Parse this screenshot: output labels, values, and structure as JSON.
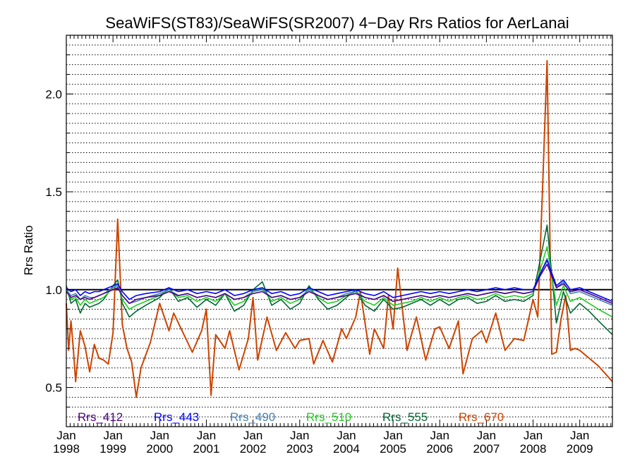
{
  "chart_data": {
    "type": "line",
    "title": "SeaWiFS(ST83)/SeaWiFS(SR2007) 4−Day Rrs Ratios for AerLanai",
    "xlabel": "",
    "ylabel": "Rrs Ratio",
    "xlim": [
      1998.0,
      2009.7
    ],
    "ylim": [
      0.3,
      2.3
    ],
    "y_ticks": [
      "0.5",
      "1.0",
      "1.5",
      "2.0"
    ],
    "x_ticks": [
      {
        "month": "Jan",
        "year": "1998",
        "x": 1998.0
      },
      {
        "month": "Jan",
        "year": "1999",
        "x": 1999.0
      },
      {
        "month": "Jan",
        "year": "2000",
        "x": 2000.0
      },
      {
        "month": "Jan",
        "year": "2001",
        "x": 2001.0
      },
      {
        "month": "Jan",
        "year": "2002",
        "x": 2002.0
      },
      {
        "month": "Jan",
        "year": "2003",
        "x": 2003.0
      },
      {
        "month": "Jan",
        "year": "2004",
        "x": 2004.0
      },
      {
        "month": "Jan",
        "year": "2005",
        "x": 2005.0
      },
      {
        "month": "Jan",
        "year": "2006",
        "x": 2006.0
      },
      {
        "month": "Jan",
        "year": "2007",
        "x": 2007.0
      },
      {
        "month": "Jan",
        "year": "2008",
        "x": 2008.0
      },
      {
        "month": "Jan",
        "year": "2009",
        "x": 2009.0
      }
    ],
    "reference_line": 1.0,
    "grid": "horizontal dotted",
    "legend_position": "bottom",
    "series": [
      {
        "name": "Rrs_412",
        "color": "#4b0082",
        "x": [
          1998.0,
          1998.1,
          1998.2,
          1998.3,
          1998.4,
          1998.5,
          1998.6,
          1998.7,
          1998.8,
          1999.0,
          1999.1,
          1999.2,
          1999.35,
          1999.5,
          1999.7,
          2000.0,
          2000.2,
          2000.4,
          2000.6,
          2000.8,
          2001.0,
          2001.2,
          2001.4,
          2001.6,
          2001.8,
          2002.0,
          2002.2,
          2002.4,
          2002.6,
          2002.8,
          2003.0,
          2003.2,
          2003.4,
          2003.6,
          2003.8,
          2004.0,
          2004.2,
          2004.4,
          2004.6,
          2004.8,
          2005.0,
          2005.2,
          2005.4,
          2005.6,
          2005.8,
          2006.0,
          2006.2,
          2006.4,
          2006.6,
          2006.8,
          2007.0,
          2007.2,
          2007.4,
          2007.6,
          2007.8,
          2008.0,
          2008.15,
          2008.3,
          2008.5,
          2008.65,
          2008.8,
          2009.0,
          2009.2,
          2009.4,
          2009.7
        ],
        "y": [
          0.99,
          0.96,
          0.97,
          0.95,
          0.96,
          0.95,
          0.96,
          0.97,
          0.98,
          1.0,
          1.01,
          0.97,
          0.93,
          0.95,
          0.96,
          0.97,
          0.99,
          0.97,
          0.98,
          0.96,
          0.97,
          0.96,
          0.98,
          0.95,
          0.96,
          0.98,
          0.99,
          0.96,
          0.97,
          0.95,
          0.96,
          0.99,
          0.97,
          0.95,
          0.96,
          0.97,
          0.98,
          0.96,
          0.95,
          0.97,
          0.94,
          0.95,
          0.96,
          0.97,
          0.96,
          0.97,
          0.96,
          0.97,
          0.98,
          0.97,
          0.98,
          0.99,
          0.98,
          0.99,
          0.98,
          0.99,
          1.07,
          1.13,
          1.01,
          1.03,
          0.99,
          1.0,
          0.98,
          0.96,
          0.93
        ]
      },
      {
        "name": "Rrs_443",
        "color": "#0000ff",
        "x": [
          1998.0,
          1998.1,
          1998.2,
          1998.3,
          1998.4,
          1998.5,
          1998.6,
          1998.7,
          1998.8,
          1999.0,
          1999.1,
          1999.2,
          1999.35,
          1999.5,
          1999.7,
          2000.0,
          2000.2,
          2000.4,
          2000.6,
          2000.8,
          2001.0,
          2001.2,
          2001.4,
          2001.6,
          2001.8,
          2002.0,
          2002.2,
          2002.4,
          2002.6,
          2002.8,
          2003.0,
          2003.2,
          2003.4,
          2003.6,
          2003.8,
          2004.0,
          2004.2,
          2004.4,
          2004.6,
          2004.8,
          2005.0,
          2005.2,
          2005.4,
          2005.6,
          2005.8,
          2006.0,
          2006.2,
          2006.4,
          2006.6,
          2006.8,
          2007.0,
          2007.2,
          2007.4,
          2007.6,
          2007.8,
          2008.0,
          2008.15,
          2008.3,
          2008.5,
          2008.65,
          2008.8,
          2009.0,
          2009.2,
          2009.4,
          2009.7
        ],
        "y": [
          1.01,
          0.99,
          1.0,
          0.97,
          0.99,
          0.98,
          0.99,
          0.99,
          1.0,
          1.02,
          1.03,
          0.99,
          0.95,
          0.97,
          0.98,
          0.99,
          1.01,
          0.99,
          1.0,
          0.98,
          0.99,
          0.98,
          1.0,
          0.97,
          0.98,
          1.0,
          1.01,
          0.98,
          0.99,
          0.97,
          0.98,
          1.01,
          0.99,
          0.97,
          0.98,
          0.99,
          1.0,
          0.98,
          0.97,
          0.99,
          0.96,
          0.97,
          0.98,
          0.99,
          0.98,
          0.99,
          0.98,
          0.99,
          1.0,
          0.99,
          1.0,
          1.01,
          1.0,
          1.01,
          1.0,
          1.0,
          1.08,
          1.15,
          1.02,
          1.05,
          1.0,
          1.01,
          0.99,
          0.97,
          0.94
        ]
      },
      {
        "name": "Rrs_490",
        "color": "#4682b4",
        "x": [
          1998.0,
          1998.1,
          1998.2,
          1998.3,
          1998.4,
          1998.5,
          1998.6,
          1998.7,
          1998.8,
          1999.0,
          1999.1,
          1999.2,
          1999.35,
          1999.5,
          1999.7,
          2000.0,
          2000.2,
          2000.4,
          2000.6,
          2000.8,
          2001.0,
          2001.2,
          2001.4,
          2001.6,
          2001.8,
          2002.0,
          2002.2,
          2002.4,
          2002.6,
          2002.8,
          2003.0,
          2003.2,
          2003.4,
          2003.6,
          2003.8,
          2004.0,
          2004.2,
          2004.4,
          2004.6,
          2004.8,
          2005.0,
          2005.2,
          2005.4,
          2005.6,
          2005.8,
          2006.0,
          2006.2,
          2006.4,
          2006.6,
          2006.8,
          2007.0,
          2007.2,
          2007.4,
          2007.6,
          2007.8,
          2008.0,
          2008.15,
          2008.3,
          2008.5,
          2008.65,
          2008.8,
          2009.0,
          2009.2,
          2009.4,
          2009.7
        ],
        "y": [
          1.0,
          0.97,
          0.98,
          0.95,
          0.97,
          0.96,
          0.96,
          0.97,
          0.98,
          1.01,
          1.02,
          0.97,
          0.93,
          0.94,
          0.96,
          0.98,
          1.0,
          0.97,
          0.98,
          0.96,
          0.97,
          0.96,
          0.98,
          0.95,
          0.96,
          0.99,
          1.0,
          0.96,
          0.97,
          0.95,
          0.96,
          1.0,
          0.97,
          0.95,
          0.96,
          0.98,
          0.99,
          0.96,
          0.95,
          0.97,
          0.94,
          0.95,
          0.96,
          0.97,
          0.96,
          0.97,
          0.96,
          0.97,
          0.98,
          0.97,
          0.98,
          0.99,
          0.98,
          0.99,
          0.98,
          0.99,
          1.08,
          1.16,
          1.01,
          1.04,
          0.98,
          0.99,
          0.97,
          0.95,
          0.92
        ]
      },
      {
        "name": "Rrs_510",
        "color": "#22cc22",
        "x": [
          1998.0,
          1998.1,
          1998.2,
          1998.3,
          1998.4,
          1998.5,
          1998.6,
          1998.7,
          1998.8,
          1999.0,
          1999.1,
          1999.2,
          1999.35,
          1999.5,
          1999.7,
          2000.0,
          2000.2,
          2000.4,
          2000.6,
          2000.8,
          2001.0,
          2001.2,
          2001.4,
          2001.6,
          2001.8,
          2002.0,
          2002.2,
          2002.4,
          2002.6,
          2002.8,
          2003.0,
          2003.2,
          2003.4,
          2003.6,
          2003.8,
          2004.0,
          2004.2,
          2004.4,
          2004.6,
          2004.8,
          2005.0,
          2005.2,
          2005.4,
          2005.6,
          2005.8,
          2006.0,
          2006.2,
          2006.4,
          2006.6,
          2006.8,
          2007.0,
          2007.2,
          2007.4,
          2007.6,
          2007.8,
          2008.0,
          2008.15,
          2008.3,
          2008.5,
          2008.65,
          2008.8,
          2009.0,
          2009.2,
          2009.4,
          2009.7
        ],
        "y": [
          1.0,
          0.95,
          0.96,
          0.92,
          0.95,
          0.93,
          0.94,
          0.95,
          0.96,
          1.01,
          1.03,
          0.95,
          0.9,
          0.92,
          0.94,
          0.97,
          1.0,
          0.96,
          0.97,
          0.94,
          0.96,
          0.94,
          0.98,
          0.92,
          0.94,
          0.99,
          1.01,
          0.94,
          0.96,
          0.93,
          0.95,
          1.01,
          0.96,
          0.93,
          0.94,
          0.97,
          0.99,
          0.94,
          0.92,
          0.96,
          0.92,
          0.93,
          0.94,
          0.96,
          0.94,
          0.96,
          0.94,
          0.96,
          0.97,
          0.95,
          0.96,
          0.98,
          0.96,
          0.97,
          0.96,
          0.98,
          1.1,
          1.22,
          0.92,
          1.02,
          0.94,
          0.96,
          0.93,
          0.9,
          0.86
        ]
      },
      {
        "name": "Rrs_555",
        "color": "#006633",
        "x": [
          1998.0,
          1998.1,
          1998.2,
          1998.3,
          1998.4,
          1998.5,
          1998.6,
          1998.7,
          1998.8,
          1999.0,
          1999.1,
          1999.2,
          1999.35,
          1999.5,
          1999.7,
          2000.0,
          2000.2,
          2000.4,
          2000.6,
          2000.8,
          2001.0,
          2001.2,
          2001.4,
          2001.6,
          2001.8,
          2002.0,
          2002.2,
          2002.4,
          2002.6,
          2002.8,
          2003.0,
          2003.2,
          2003.4,
          2003.6,
          2003.8,
          2004.0,
          2004.2,
          2004.4,
          2004.6,
          2004.8,
          2005.0,
          2005.2,
          2005.4,
          2005.6,
          2005.8,
          2006.0,
          2006.2,
          2006.4,
          2006.6,
          2006.8,
          2007.0,
          2007.2,
          2007.4,
          2007.6,
          2007.8,
          2008.0,
          2008.15,
          2008.3,
          2008.5,
          2008.65,
          2008.8,
          2009.0,
          2009.2,
          2009.4,
          2009.7
        ],
        "y": [
          1.02,
          0.93,
          0.95,
          0.88,
          0.93,
          0.91,
          0.92,
          0.93,
          0.95,
          1.02,
          1.05,
          0.93,
          0.86,
          0.89,
          0.92,
          0.96,
          1.01,
          0.94,
          0.96,
          0.91,
          0.95,
          0.92,
          0.98,
          0.89,
          0.92,
          1.0,
          1.04,
          0.92,
          0.95,
          0.9,
          0.93,
          1.02,
          0.95,
          0.9,
          0.92,
          0.96,
          1.0,
          0.92,
          0.89,
          0.95,
          0.9,
          0.91,
          0.93,
          0.95,
          0.92,
          0.95,
          0.92,
          0.95,
          0.96,
          0.93,
          0.94,
          0.97,
          0.94,
          0.95,
          0.94,
          0.97,
          1.15,
          1.33,
          0.83,
          0.99,
          0.88,
          0.93,
          0.89,
          0.84,
          0.77
        ]
      },
      {
        "name": "Rrs_670",
        "color": "#cc4400",
        "x": [
          1998.0,
          1998.05,
          1998.1,
          1998.15,
          1998.2,
          1998.3,
          1998.4,
          1998.5,
          1998.6,
          1998.7,
          1998.8,
          1998.9,
          1999.0,
          1999.1,
          1999.2,
          1999.3,
          1999.4,
          1999.5,
          1999.6,
          1999.8,
          2000.0,
          2000.2,
          2000.3,
          2000.5,
          2000.7,
          2000.9,
          2001.0,
          2001.1,
          2001.2,
          2001.4,
          2001.5,
          2001.7,
          2001.9,
          2002.0,
          2002.1,
          2002.3,
          2002.5,
          2002.7,
          2002.9,
          2003.0,
          2003.2,
          2003.3,
          2003.5,
          2003.7,
          2003.9,
          2004.0,
          2004.2,
          2004.3,
          2004.5,
          2004.6,
          2004.8,
          2004.9,
          2005.0,
          2005.1,
          2005.3,
          2005.5,
          2005.7,
          2005.9,
          2006.0,
          2006.2,
          2006.4,
          2006.5,
          2006.7,
          2006.9,
          2007.0,
          2007.2,
          2007.4,
          2007.6,
          2007.8,
          2008.0,
          2008.1,
          2008.2,
          2008.3,
          2008.4,
          2008.5,
          2008.6,
          2008.7,
          2008.8,
          2008.9,
          2009.0,
          2009.2,
          2009.4,
          2009.7
        ],
        "y": [
          0.93,
          0.69,
          0.84,
          0.7,
          0.53,
          0.79,
          0.71,
          0.58,
          0.72,
          0.65,
          0.64,
          0.62,
          0.78,
          1.36,
          0.82,
          0.7,
          0.63,
          0.45,
          0.6,
          0.73,
          0.93,
          0.79,
          0.88,
          0.78,
          0.68,
          0.79,
          0.9,
          0.46,
          0.77,
          0.7,
          0.79,
          0.59,
          0.75,
          0.96,
          0.64,
          0.86,
          0.69,
          0.78,
          0.7,
          0.74,
          0.75,
          0.62,
          0.74,
          0.63,
          0.8,
          0.75,
          0.86,
          0.99,
          0.67,
          0.8,
          0.7,
          0.97,
          0.8,
          1.11,
          0.69,
          0.86,
          0.64,
          0.8,
          0.81,
          0.7,
          0.84,
          0.57,
          0.75,
          0.79,
          0.73,
          0.88,
          0.69,
          0.75,
          0.74,
          0.95,
          0.86,
          1.5,
          2.17,
          0.67,
          0.68,
          0.85,
          0.97,
          0.69,
          0.7,
          0.69,
          0.65,
          0.61,
          0.53
        ]
      }
    ]
  }
}
